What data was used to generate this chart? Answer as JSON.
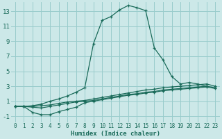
{
  "xlabel": "Humidex (Indice chaleur)",
  "bg_color": "#cce8e8",
  "grid_color": "#99cccc",
  "line_color": "#1a6b5a",
  "xlim": [
    -0.5,
    23.5
  ],
  "ylim": [
    -1.8,
    14.2
  ],
  "xticks": [
    0,
    1,
    2,
    3,
    4,
    5,
    6,
    7,
    8,
    9,
    10,
    11,
    12,
    13,
    14,
    15,
    16,
    17,
    18,
    19,
    20,
    21,
    22,
    23
  ],
  "yticks": [
    -1,
    1,
    3,
    5,
    7,
    9,
    11,
    13
  ],
  "lines": [
    {
      "x": [
        0,
        1,
        2,
        3,
        4,
        5,
        6,
        7,
        8,
        9,
        10,
        11,
        12,
        13,
        14,
        15,
        16,
        17,
        18,
        19,
        20,
        21,
        22,
        23
      ],
      "y": [
        0.3,
        0.3,
        0.4,
        0.6,
        1.0,
        1.3,
        1.7,
        2.2,
        2.8,
        8.7,
        11.8,
        12.3,
        13.2,
        13.8,
        13.5,
        13.1,
        8.1,
        6.5,
        4.3,
        3.3,
        3.5,
        3.3,
        3.0,
        null
      ]
    },
    {
      "x": [
        0,
        1,
        2,
        3,
        4,
        5,
        6,
        7,
        8,
        9,
        10,
        11,
        12,
        13,
        14,
        15,
        16,
        17,
        18,
        19,
        20,
        21,
        22,
        23
      ],
      "y": [
        0.3,
        0.3,
        0.3,
        0.4,
        0.5,
        0.7,
        0.9,
        1.0,
        1.1,
        1.3,
        1.5,
        1.7,
        1.9,
        2.1,
        2.3,
        2.5,
        2.6,
        2.8,
        2.9,
        3.0,
        3.1,
        3.2,
        3.3,
        3.0
      ]
    },
    {
      "x": [
        0,
        1,
        2,
        3,
        4,
        5,
        6,
        7,
        8,
        9,
        10,
        11,
        12,
        13,
        14,
        15,
        16,
        17,
        18,
        19,
        20,
        21,
        22,
        23
      ],
      "y": [
        0.3,
        0.3,
        0.2,
        0.1,
        0.3,
        0.5,
        0.7,
        0.9,
        1.0,
        1.1,
        1.3,
        1.5,
        1.7,
        1.9,
        2.0,
        2.2,
        2.3,
        2.5,
        2.6,
        2.7,
        2.8,
        2.9,
        3.0,
        2.8
      ]
    },
    {
      "x": [
        0,
        1,
        2,
        3,
        4,
        5,
        6,
        7,
        8,
        9,
        10,
        11,
        12,
        13,
        14,
        15,
        16,
        17,
        18,
        19,
        20,
        21,
        22,
        23
      ],
      "y": [
        0.3,
        0.3,
        -0.5,
        -0.8,
        -0.8,
        -0.4,
        -0.1,
        0.2,
        0.8,
        1.0,
        1.2,
        1.4,
        1.6,
        1.8,
        1.9,
        2.1,
        2.2,
        2.4,
        2.5,
        2.6,
        2.7,
        2.8,
        2.9,
        2.7
      ]
    }
  ]
}
